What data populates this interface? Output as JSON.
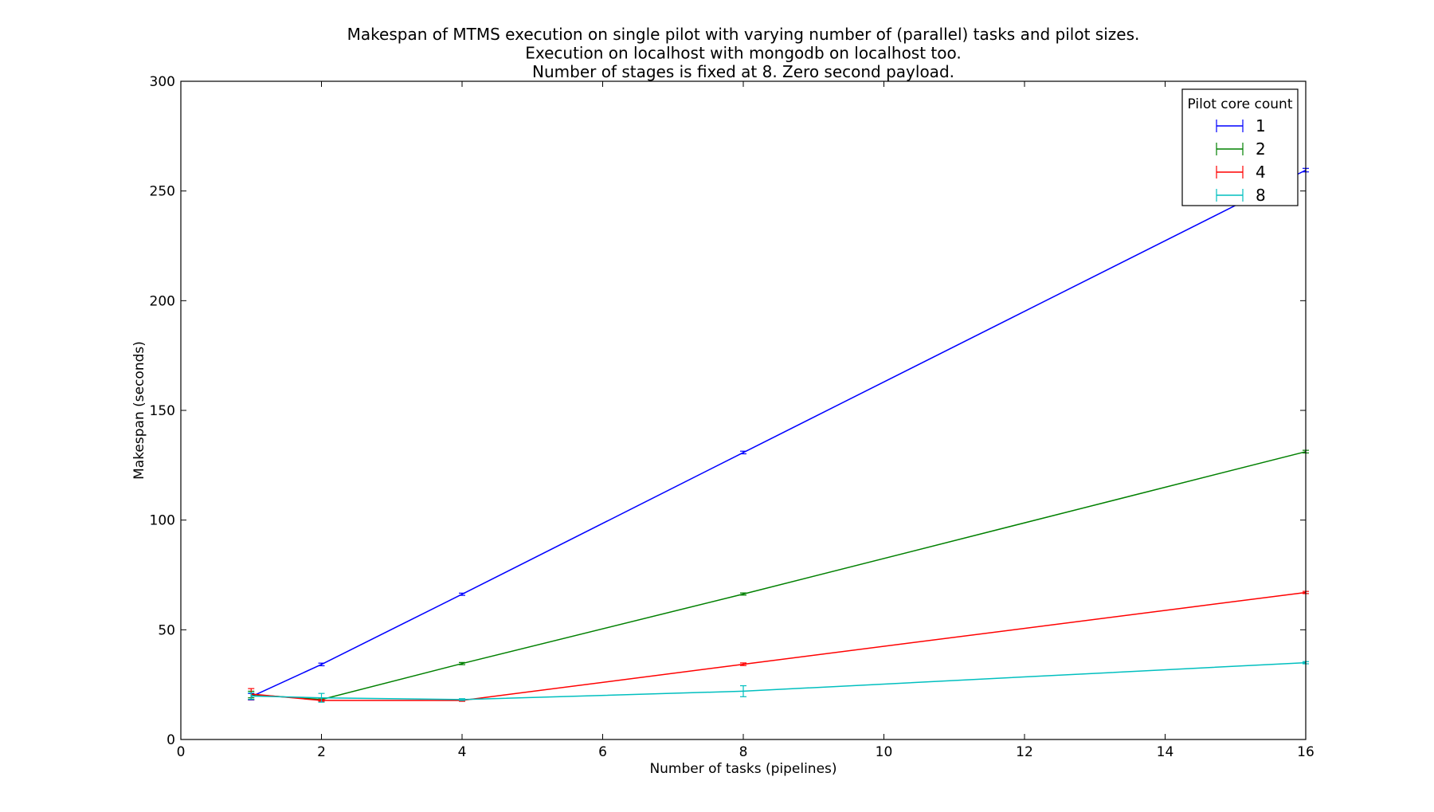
{
  "chart_data": {
    "type": "line",
    "title": [
      "Makespan of MTMS execution on single pilot with varying number of (parallel) tasks and pilot sizes.",
      "Execution on localhost with mongodb on localhost too.",
      "Number of stages is fixed at 8. Zero second payload."
    ],
    "xlabel": "Number of tasks (pipelines)",
    "ylabel": "Makespan (seconds)",
    "xlim": [
      0,
      16
    ],
    "ylim": [
      0,
      300
    ],
    "xticks": [
      0,
      2,
      4,
      6,
      8,
      10,
      12,
      14,
      16
    ],
    "yticks": [
      0,
      50,
      100,
      150,
      200,
      250,
      300
    ],
    "grid": false,
    "x": [
      1,
      2,
      4,
      8,
      16
    ],
    "legend": {
      "title": "Pilot core count",
      "placement": "top-right"
    },
    "series": [
      {
        "name": "1",
        "color": "#0000ff",
        "values": [
          19.5,
          34.2,
          66.2,
          130.8,
          259.5
        ],
        "errors": [
          1.5,
          0.6,
          0.5,
          0.6,
          0.8
        ]
      },
      {
        "name": "2",
        "color": "#008000",
        "values": [
          20.5,
          18.2,
          34.6,
          66.3,
          131.2
        ],
        "errors": [
          1.5,
          0.6,
          0.5,
          0.5,
          0.6
        ]
      },
      {
        "name": "4",
        "color": "#ff0000",
        "values": [
          20.7,
          17.8,
          17.8,
          34.3,
          67.0
        ],
        "errors": [
          2.5,
          0.4,
          0.4,
          0.6,
          0.5
        ]
      },
      {
        "name": "8",
        "color": "#00bfbf",
        "values": [
          19.8,
          19.0,
          18.2,
          22.0,
          35.0
        ],
        "errors": [
          1.5,
          2.0,
          0.4,
          2.5,
          0.5
        ]
      }
    ]
  }
}
